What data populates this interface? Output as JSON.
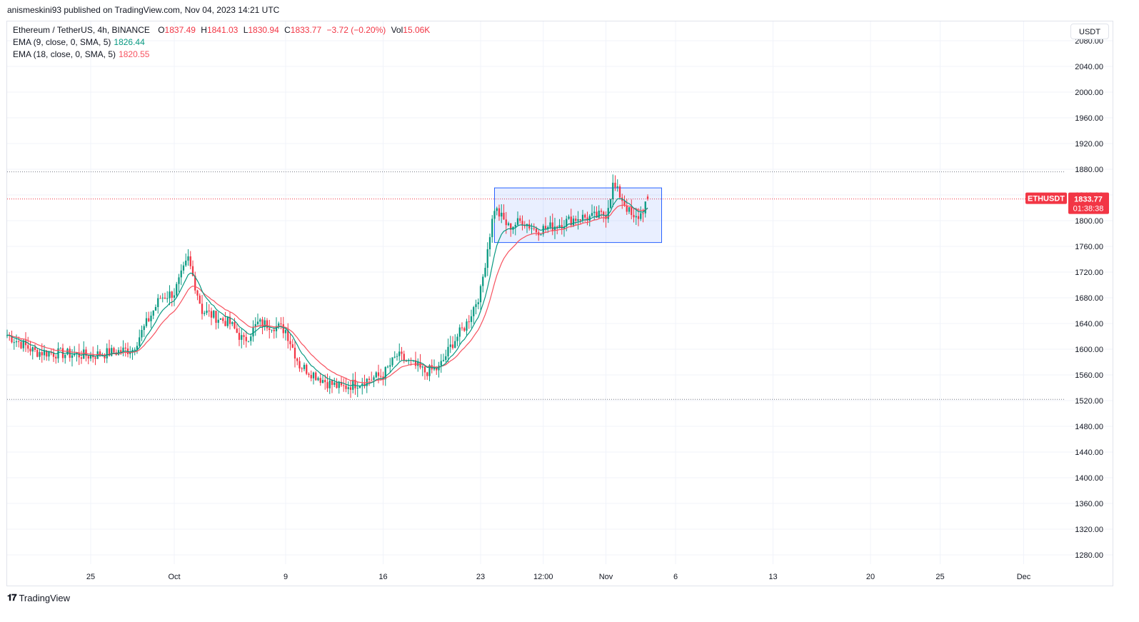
{
  "header": {
    "published_line": "anismeskini93 published on TradingView.com, Nov 04, 2023 14:21 UTC"
  },
  "legend": {
    "symbol": "Ethereum / TetherUS, 4h, BINANCE",
    "open_label": "O",
    "open": "1837.49",
    "high_label": "H",
    "high": "1841.03",
    "low_label": "L",
    "low": "1830.94",
    "close_label": "C",
    "close": "1833.77",
    "change": "−3.72 (−0.20%)",
    "vol_label": "Vol",
    "vol": "15.06K",
    "ema1_label": "EMA (9, close, 0, SMA, 5)",
    "ema1_value": "1826.44",
    "ema2_label": "EMA (18, close, 0, SMA, 5)",
    "ema2_value": "1820.55"
  },
  "currency_button": "USDT",
  "price_tag": {
    "symbol": "ETHUSDT",
    "price": "1833.77",
    "countdown": "01:38:38"
  },
  "brand": {
    "name": "TradingView"
  },
  "colors": {
    "up": "#089981",
    "down": "#f23645",
    "ema9": "#089981",
    "ema18": "#f7525f",
    "box": "#2962ff"
  },
  "chart_data": {
    "type": "candlestick",
    "interval": "4h",
    "ylim": [
      1260,
      2110
    ],
    "y_ticks": [
      1280,
      1320,
      1360,
      1400,
      1440,
      1480,
      1520,
      1560,
      1600,
      1640,
      1680,
      1720,
      1760,
      1800,
      1840,
      1880,
      1920,
      1960,
      2000,
      2040,
      2080
    ],
    "y_tick_labels": [
      "1280.00",
      "1320.00",
      "1360.00",
      "1400.00",
      "1440.00",
      "1480.00",
      "1520.00",
      "1560.00",
      "1600.00",
      "1640.00",
      "1680.00",
      "1720.00",
      "1760.00",
      "1800.00",
      "1840.00",
      "1880.00",
      "1920.00",
      "1960.00",
      "2000.00",
      "2040.00",
      "2080.00"
    ],
    "xlim": [
      "2023-09-19",
      "2023-12-04"
    ],
    "x_ticks": [
      {
        "date": "2023-09-25",
        "label": "25"
      },
      {
        "date": "2023-10-01",
        "label": "Oct"
      },
      {
        "date": "2023-10-09",
        "label": "9"
      },
      {
        "date": "2023-10-16",
        "label": "16"
      },
      {
        "date": "2023-10-23",
        "label": "23"
      },
      {
        "date": "2023-10-27 12:00",
        "label": "12:00"
      },
      {
        "date": "2023-11-01",
        "label": "Nov"
      },
      {
        "date": "2023-11-06",
        "label": "6"
      },
      {
        "date": "2023-11-13",
        "label": "13"
      },
      {
        "date": "2023-11-20",
        "label": "20"
      },
      {
        "date": "2023-11-25",
        "label": "25"
      },
      {
        "date": "2023-12-01",
        "label": "Dec"
      }
    ],
    "horizontal_lines": [
      {
        "price": 1876,
        "style": "dotted",
        "color": "#787b86"
      },
      {
        "price": 1522,
        "style": "dotted",
        "color": "#787b86"
      },
      {
        "price": 1833.77,
        "style": "dotted",
        "color": "#f23645"
      }
    ],
    "rectangle": {
      "from": "2023-10-24",
      "to": "2023-11-05",
      "top": 1851,
      "bottom": 1766
    },
    "price_key_points": [
      {
        "date": "2023-09-19",
        "price": 1622
      },
      {
        "date": "2023-09-21",
        "price": 1596
      },
      {
        "date": "2023-09-25",
        "price": 1590
      },
      {
        "date": "2023-09-28",
        "price": 1600
      },
      {
        "date": "2023-09-30",
        "price": 1680
      },
      {
        "date": "2023-10-01",
        "price": 1688
      },
      {
        "date": "2023-10-02",
        "price": 1740
      },
      {
        "date": "2023-10-03",
        "price": 1660
      },
      {
        "date": "2023-10-05",
        "price": 1640
      },
      {
        "date": "2023-10-06",
        "price": 1612
      },
      {
        "date": "2023-10-07",
        "price": 1640
      },
      {
        "date": "2023-10-08",
        "price": 1638
      },
      {
        "date": "2023-10-09",
        "price": 1630
      },
      {
        "date": "2023-10-10",
        "price": 1575
      },
      {
        "date": "2023-10-12",
        "price": 1548
      },
      {
        "date": "2023-10-13",
        "price": 1540
      },
      {
        "date": "2023-10-16",
        "price": 1560
      },
      {
        "date": "2023-10-17",
        "price": 1590
      },
      {
        "date": "2023-10-19",
        "price": 1565
      },
      {
        "date": "2023-10-20",
        "price": 1570
      },
      {
        "date": "2023-10-21",
        "price": 1610
      },
      {
        "date": "2023-10-22",
        "price": 1640
      },
      {
        "date": "2023-10-23",
        "price": 1690
      },
      {
        "date": "2023-10-23 16:00",
        "price": 1780
      },
      {
        "date": "2023-10-24",
        "price": 1820
      },
      {
        "date": "2023-10-25",
        "price": 1790
      },
      {
        "date": "2023-10-26",
        "price": 1800
      },
      {
        "date": "2023-10-27",
        "price": 1785
      },
      {
        "date": "2023-10-28",
        "price": 1790
      },
      {
        "date": "2023-10-30",
        "price": 1805
      },
      {
        "date": "2023-10-31",
        "price": 1805
      },
      {
        "date": "2023-11-01",
        "price": 1810
      },
      {
        "date": "2023-11-01 12:00",
        "price": 1855
      },
      {
        "date": "2023-11-02",
        "price": 1840
      },
      {
        "date": "2023-11-03",
        "price": 1800
      },
      {
        "date": "2023-11-03 12:00",
        "price": 1810
      },
      {
        "date": "2023-11-04",
        "price": 1834
      }
    ],
    "series": [
      {
        "name": "EMA (9, close, 0, SMA, 5)",
        "last": 1826.44
      },
      {
        "name": "EMA (18, close, 0, SMA, 5)",
        "last": 1820.55
      }
    ],
    "grid": true
  }
}
